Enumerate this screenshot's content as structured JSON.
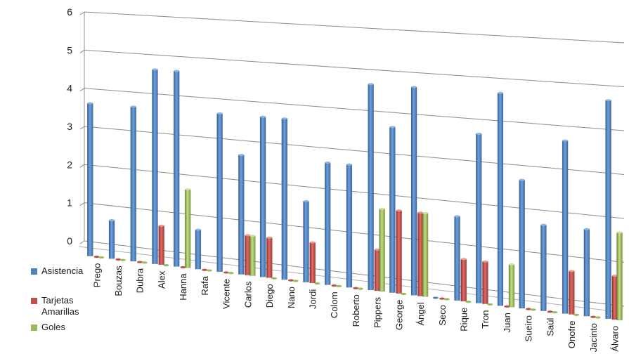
{
  "chart_data": {
    "type": "bar",
    "ylim": [
      0,
      6
    ],
    "y_ticks": [
      "0",
      "1",
      "2",
      "3",
      "4",
      "5",
      "6"
    ],
    "grid": true,
    "legend_position": "left",
    "categories": [
      "Prego",
      "Bouzas",
      "Dubra",
      "Alex",
      "Hanna",
      "Rafa",
      "Vicente",
      "Carlos",
      "Diego",
      "Nano",
      "Jordi",
      "Colom",
      "Roberto",
      "Pippers",
      "George",
      "Ángel",
      "Seco",
      "Rique",
      "Tron",
      "Juan",
      "Sueiro",
      "Saúl",
      "Onofre",
      "Jacinto",
      "Álvaro"
    ],
    "series": [
      {
        "name": "Asistencia",
        "color": "#4F81BD",
        "values": [
          4,
          1,
          4,
          5,
          5,
          1,
          4,
          3,
          4,
          4,
          2,
          3,
          3,
          5,
          4,
          5,
          0,
          2,
          4,
          5,
          3,
          2,
          4,
          2,
          5
        ]
      },
      {
        "name": "Tarjetas Amarillas",
        "color": "#C0504D",
        "values": [
          0,
          0,
          0,
          1,
          0,
          0,
          0,
          1,
          1,
          0,
          1,
          0,
          0,
          1,
          2,
          2,
          0,
          1,
          1,
          0,
          0,
          0,
          1,
          0,
          1
        ]
      },
      {
        "name": "Goles",
        "color": "#9BBB59",
        "values": [
          0,
          0,
          0,
          0,
          2,
          0,
          0,
          1,
          0,
          0,
          0,
          0,
          0,
          2,
          0,
          2,
          0,
          0,
          0,
          1,
          0,
          0,
          0,
          0,
          2
        ]
      }
    ]
  }
}
